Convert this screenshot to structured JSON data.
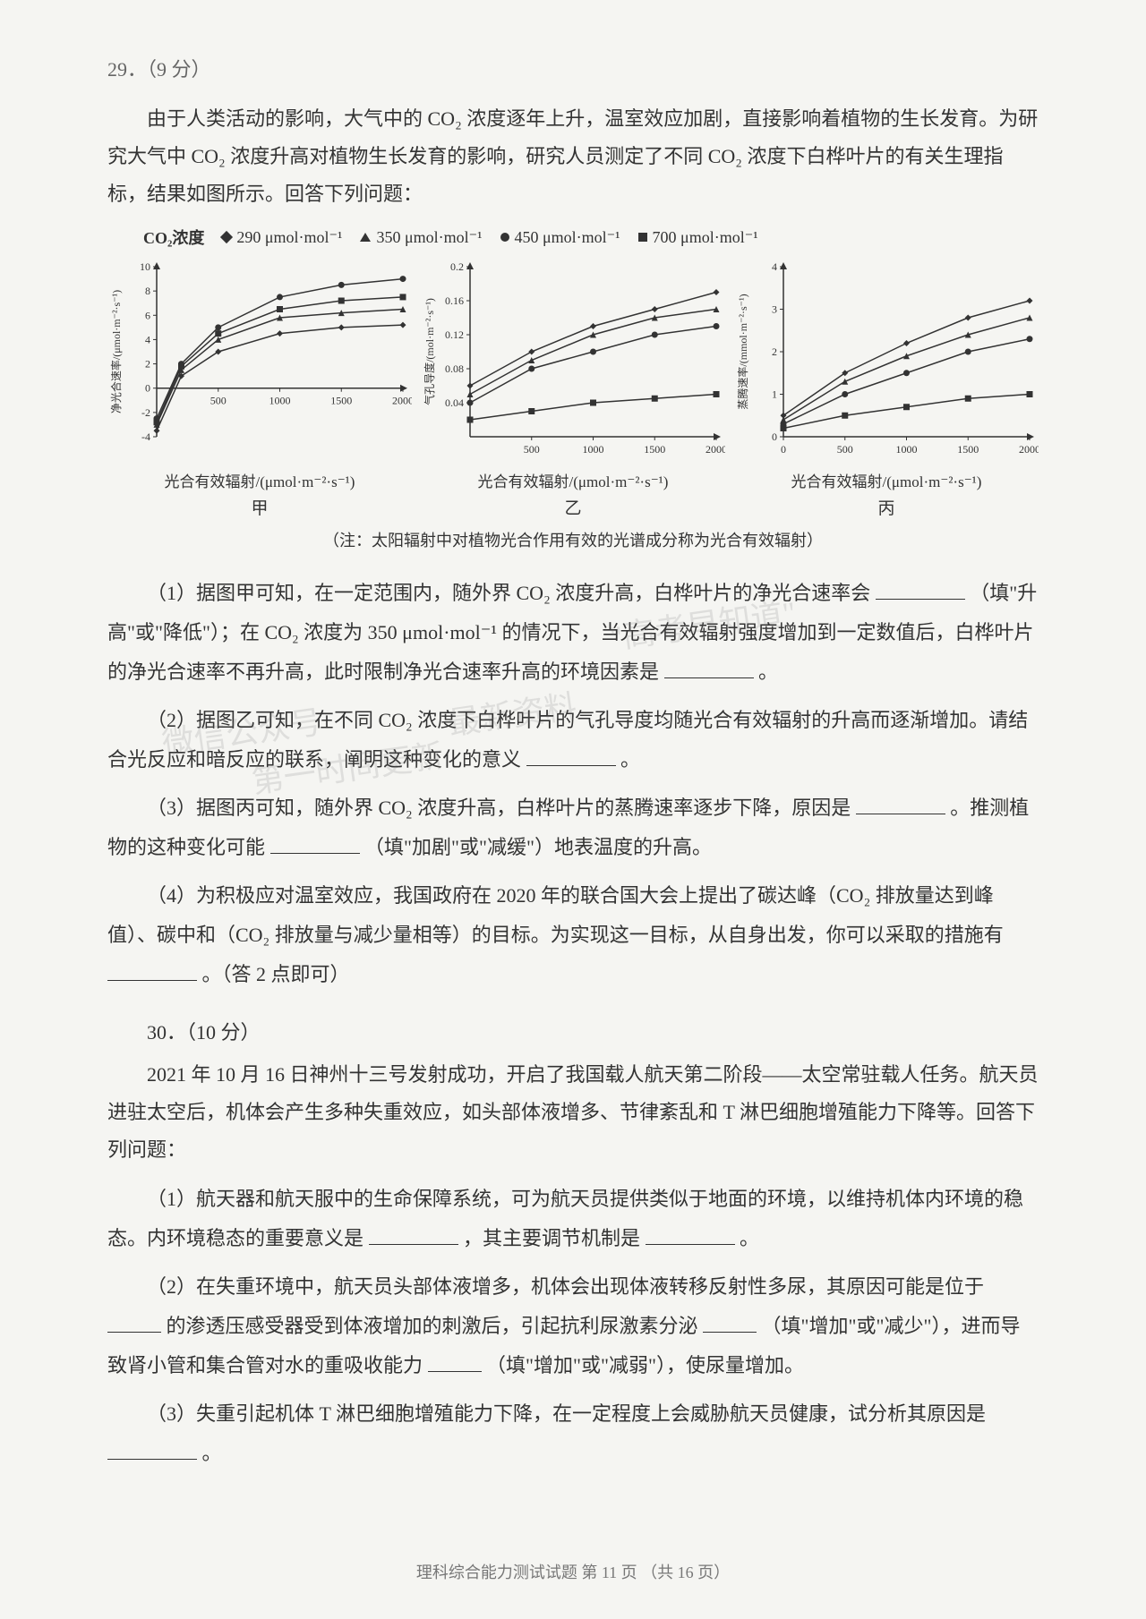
{
  "q29": {
    "number": "29．（9 分）",
    "intro1": "由于人类活动的影响，大气中的 CO₂ 浓度逐年上升，温室效应加剧，直接影响着植物的生长发育。为研究大气中 CO₂ 浓度升高对植物生长发育的影响，研究人员测定了不同 CO₂ 浓度下白桦叶片的有关生理指标，结果如图所示。回答下列问题：",
    "legend": {
      "title": "CO₂浓度",
      "items": [
        {
          "label": "290 μmol·mol⁻¹",
          "marker": "diamond"
        },
        {
          "label": "350 μmol·mol⁻¹",
          "marker": "triangle"
        },
        {
          "label": "450 μmol·mol⁻¹",
          "marker": "circle"
        },
        {
          "label": "700 μmol·mol⁻¹",
          "marker": "square"
        }
      ]
    },
    "charts": {
      "chart_a": {
        "type": "line",
        "ylabel": "净光合速率/(μmol·m⁻²·s⁻¹)",
        "xlabel": "光合有效辐射/(μmol·m⁻²·s⁻¹)",
        "sublabel": "甲",
        "xlim": [
          0,
          2000
        ],
        "xticks": [
          500,
          1000,
          1500,
          2000
        ],
        "ylim": [
          -4,
          10
        ],
        "yticks": [
          -4,
          -2,
          0,
          2,
          4,
          6,
          8,
          10
        ],
        "line_color": "#333333",
        "axis_color": "#333333",
        "background_color": "#f5f5f2",
        "series": [
          {
            "marker": "diamond",
            "x": [
              0,
              200,
              500,
              1000,
              1500,
              2000
            ],
            "y": [
              -3.5,
              1.0,
              3.0,
              4.5,
              5.0,
              5.2
            ]
          },
          {
            "marker": "triangle",
            "x": [
              0,
              200,
              500,
              1000,
              1500,
              2000
            ],
            "y": [
              -3.0,
              1.5,
              4.0,
              5.8,
              6.2,
              6.5
            ]
          },
          {
            "marker": "circle",
            "x": [
              0,
              200,
              500,
              1000,
              1500,
              2000
            ],
            "y": [
              -2.5,
              2.0,
              5.0,
              7.5,
              8.5,
              9.0
            ]
          },
          {
            "marker": "square",
            "x": [
              0,
              200,
              500,
              1000,
              1500,
              2000
            ],
            "y": [
              -2.8,
              1.8,
              4.5,
              6.5,
              7.2,
              7.5
            ]
          }
        ]
      },
      "chart_b": {
        "type": "line",
        "ylabel": "气孔导度/(mol·m⁻²·s⁻¹)",
        "xlabel": "光合有效辐射/(μmol·m⁻²·s⁻¹)",
        "sublabel": "乙",
        "xlim": [
          0,
          2000
        ],
        "xticks": [
          500,
          1000,
          1500,
          2000
        ],
        "ylim": [
          0,
          0.2
        ],
        "yticks": [
          0.04,
          0.08,
          0.12,
          0.16,
          0.2
        ],
        "line_color": "#333333",
        "axis_color": "#333333",
        "background_color": "#f5f5f2",
        "series": [
          {
            "marker": "diamond",
            "x": [
              0,
              500,
              1000,
              1500,
              2000
            ],
            "y": [
              0.06,
              0.1,
              0.13,
              0.15,
              0.17
            ]
          },
          {
            "marker": "triangle",
            "x": [
              0,
              500,
              1000,
              1500,
              2000
            ],
            "y": [
              0.05,
              0.09,
              0.12,
              0.14,
              0.15
            ]
          },
          {
            "marker": "circle",
            "x": [
              0,
              500,
              1000,
              1500,
              2000
            ],
            "y": [
              0.04,
              0.08,
              0.1,
              0.12,
              0.13
            ]
          },
          {
            "marker": "square",
            "x": [
              0,
              500,
              1000,
              1500,
              2000
            ],
            "y": [
              0.02,
              0.03,
              0.04,
              0.045,
              0.05
            ]
          }
        ]
      },
      "chart_c": {
        "type": "line",
        "ylabel": "蒸腾速率/(mmol·m⁻²·s⁻¹)",
        "xlabel": "光合有效辐射/(μmol·m⁻²·s⁻¹)",
        "sublabel": "丙",
        "xlim": [
          0,
          2000
        ],
        "xticks": [
          0,
          500,
          1000,
          1500,
          2000
        ],
        "ylim": [
          0,
          4.0
        ],
        "yticks": [
          0,
          1.0,
          2.0,
          3.0,
          4.0
        ],
        "line_color": "#333333",
        "axis_color": "#333333",
        "background_color": "#f5f5f2",
        "series": [
          {
            "marker": "diamond",
            "x": [
              0,
              500,
              1000,
              1500,
              2000
            ],
            "y": [
              0.5,
              1.5,
              2.2,
              2.8,
              3.2
            ]
          },
          {
            "marker": "triangle",
            "x": [
              0,
              500,
              1000,
              1500,
              2000
            ],
            "y": [
              0.4,
              1.3,
              1.9,
              2.4,
              2.8
            ]
          },
          {
            "marker": "circle",
            "x": [
              0,
              500,
              1000,
              1500,
              2000
            ],
            "y": [
              0.3,
              1.0,
              1.5,
              2.0,
              2.3
            ]
          },
          {
            "marker": "square",
            "x": [
              0,
              500,
              1000,
              1500,
              2000
            ],
            "y": [
              0.2,
              0.5,
              0.7,
              0.9,
              1.0
            ]
          }
        ]
      }
    },
    "chart_note": "（注：太阳辐射中对植物光合作用有效的光谱成分称为光合有效辐射）",
    "sub1_a": "（1）据图甲可知，在一定范围内，随外界 CO₂ 浓度升高，白桦叶片的净光合速率会",
    "sub1_b": "（填\"升高\"或\"降低\"）；在 CO₂ 浓度为 350 μmol·mol⁻¹ 的情况下，当光合有效辐射强度增加到一定数值后，白桦叶片的净光合速率不再升高，此时限制净光合速率升高的环境因素是",
    "sub1_c": "。",
    "sub2_a": "（2）据图乙可知，在不同 CO₂ 浓度下白桦叶片的气孔导度均随光合有效辐射的升高而逐渐增加。请结合光反应和暗反应的联系，阐明这种变化的意义",
    "sub2_b": "。",
    "sub3_a": "（3）据图丙可知，随外界 CO₂ 浓度升高，白桦叶片的蒸腾速率逐步下降，原因是",
    "sub3_b": "。推测植物的这种变化可能",
    "sub3_c": "（填\"加剧\"或\"减缓\"）地表温度的升高。",
    "sub4_a": "（4）为积极应对温室效应，我国政府在 2020 年的联合国大会上提出了碳达峰（CO₂ 排放量达到峰值）、碳中和（CO₂ 排放量与减少量相等）的目标。为实现这一目标，从自身出发，你可以采取的措施有",
    "sub4_b": "。（答 2 点即可）"
  },
  "q30": {
    "number": "30．（10 分）",
    "intro": "2021 年 10 月 16 日神州十三号发射成功，开启了我国载人航天第二阶段——太空常驻载人任务。航天员进驻太空后，机体会产生多种失重效应，如头部体液增多、节律紊乱和 T 淋巴细胞增殖能力下降等。回答下列问题：",
    "sub1_a": "（1）航天器和航天服中的生命保障系统，可为航天员提供类似于地面的环境，以维持机体内环境的稳态。内环境稳态的重要意义是",
    "sub1_b": "，其主要调节机制是",
    "sub1_c": "。",
    "sub2_a": "（2）在失重环境中，航天员头部体液增多，机体会出现体液转移反射性多尿，其原因可能是位于",
    "sub2_b": "的渗透压感受器受到体液增加的刺激后，引起抗利尿激素分泌",
    "sub2_c": "（填\"增加\"或\"减少\"），进而导致肾小管和集合管对水的重吸收能力",
    "sub2_d": "（填\"增加\"或\"减弱\"），使尿量增加。",
    "sub3_a": "（3）失重引起机体 T 淋巴细胞增殖能力下降，在一定程度上会威胁航天员健康，试分析其原因是",
    "sub3_b": "。"
  },
  "watermarks": {
    "w1": "\"高考早知道\"",
    "w2": "微信公众号",
    "w3": "最新资料",
    "w4": "第一时间更新"
  },
  "footer": "理科综合能力测试试题  第 11 页 （共 16 页）"
}
